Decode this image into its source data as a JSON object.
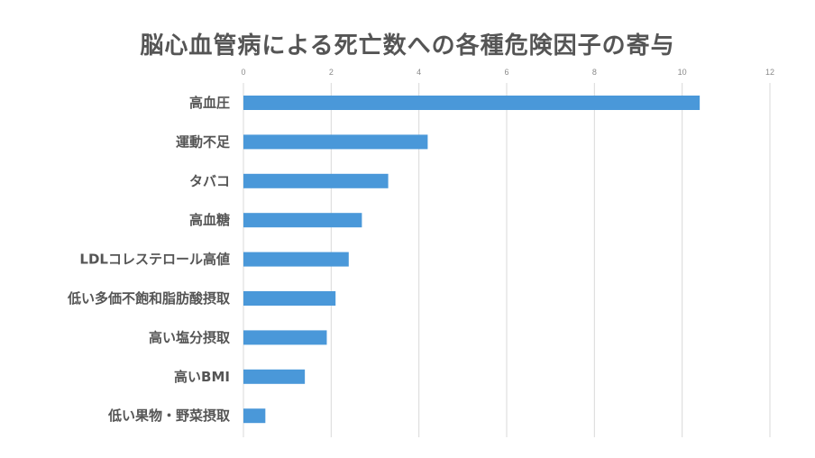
{
  "chart_data": {
    "type": "bar",
    "orientation": "horizontal",
    "title": "脳心血管病による死亡数への各種危険因子の寄与",
    "xlabel": "",
    "ylabel": "",
    "xlim": [
      0,
      12
    ],
    "ticks": [
      0,
      2,
      4,
      6,
      8,
      10,
      12
    ],
    "tick_position": "top",
    "grid": true,
    "categories": [
      "高血圧",
      "運動不足",
      "タバコ",
      "高血糖",
      "LDLコレステロール高値",
      "低い多価不飽和脂肪酸摂取",
      "高い塩分摂取",
      "高いBMI",
      "低い果物・野菜摂取"
    ],
    "values": [
      10.4,
      4.2,
      3.3,
      2.7,
      2.4,
      2.1,
      1.9,
      1.4,
      0.5
    ],
    "bar_color": "#4a98d9"
  }
}
